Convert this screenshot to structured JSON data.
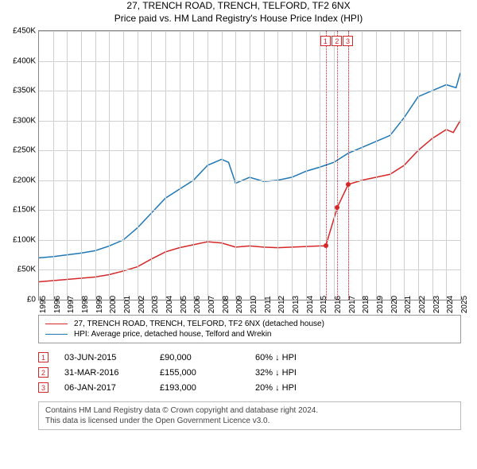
{
  "title": "27, TRENCH ROAD, TRENCH, TELFORD, TF2 6NX",
  "subtitle": "Price paid vs. HM Land Registry's House Price Index (HPI)",
  "chart": {
    "type": "line",
    "background_color": "#ffffff",
    "grid_color": "#d0d0d0",
    "border_color": "#888888",
    "ylim": [
      0,
      450000
    ],
    "ytick_step": 50000,
    "yticks": [
      "£0",
      "£50K",
      "£100K",
      "£150K",
      "£200K",
      "£250K",
      "£300K",
      "£350K",
      "£400K",
      "£450K"
    ],
    "xlim": [
      1995,
      2025
    ],
    "xticks": [
      "1995",
      "1996",
      "1997",
      "1998",
      "1999",
      "2000",
      "2001",
      "2002",
      "2003",
      "2004",
      "2005",
      "2006",
      "2007",
      "2008",
      "2009",
      "2010",
      "2011",
      "2012",
      "2013",
      "2014",
      "2015",
      "2016",
      "2017",
      "2018",
      "2019",
      "2020",
      "2021",
      "2022",
      "2023",
      "2024",
      "2025"
    ],
    "label_fontsize": 10,
    "series": [
      {
        "name": "27, TRENCH ROAD, TRENCH, TELFORD, TF2 6NX (detached house)",
        "color": "#d62728",
        "line_width": 1.5,
        "data": [
          [
            1995,
            30000
          ],
          [
            1996,
            32000
          ],
          [
            1997,
            34000
          ],
          [
            1998,
            36000
          ],
          [
            1999,
            38000
          ],
          [
            2000,
            42000
          ],
          [
            2001,
            48000
          ],
          [
            2002,
            55000
          ],
          [
            2003,
            68000
          ],
          [
            2004,
            80000
          ],
          [
            2005,
            87000
          ],
          [
            2006,
            92000
          ],
          [
            2007,
            97000
          ],
          [
            2008,
            95000
          ],
          [
            2009,
            88000
          ],
          [
            2010,
            90000
          ],
          [
            2011,
            88000
          ],
          [
            2012,
            87000
          ],
          [
            2013,
            88000
          ],
          [
            2014,
            89000
          ],
          [
            2015,
            90000
          ],
          [
            2015.42,
            90000
          ],
          [
            2016.25,
            155000
          ],
          [
            2017.02,
            193000
          ],
          [
            2018,
            200000
          ],
          [
            2019,
            205000
          ],
          [
            2020,
            210000
          ],
          [
            2021,
            225000
          ],
          [
            2022,
            250000
          ],
          [
            2023,
            270000
          ],
          [
            2024,
            285000
          ],
          [
            2024.5,
            280000
          ],
          [
            2025,
            300000
          ]
        ]
      },
      {
        "name": "HPI: Average price, detached house, Telford and Wrekin",
        "color": "#1f77b4",
        "line_width": 1.5,
        "data": [
          [
            1995,
            70000
          ],
          [
            1996,
            72000
          ],
          [
            1997,
            75000
          ],
          [
            1998,
            78000
          ],
          [
            1999,
            82000
          ],
          [
            2000,
            90000
          ],
          [
            2001,
            100000
          ],
          [
            2002,
            120000
          ],
          [
            2003,
            145000
          ],
          [
            2004,
            170000
          ],
          [
            2005,
            185000
          ],
          [
            2006,
            200000
          ],
          [
            2007,
            225000
          ],
          [
            2008,
            235000
          ],
          [
            2008.5,
            230000
          ],
          [
            2009,
            195000
          ],
          [
            2010,
            205000
          ],
          [
            2011,
            198000
          ],
          [
            2012,
            200000
          ],
          [
            2013,
            205000
          ],
          [
            2014,
            215000
          ],
          [
            2015,
            222000
          ],
          [
            2016,
            230000
          ],
          [
            2017,
            245000
          ],
          [
            2018,
            255000
          ],
          [
            2019,
            265000
          ],
          [
            2020,
            275000
          ],
          [
            2021,
            305000
          ],
          [
            2022,
            340000
          ],
          [
            2023,
            350000
          ],
          [
            2024,
            360000
          ],
          [
            2024.7,
            355000
          ],
          [
            2025,
            380000
          ]
        ]
      }
    ],
    "markers": [
      {
        "n": "1",
        "x": 2015.42,
        "y": 90000
      },
      {
        "n": "2",
        "x": 2016.25,
        "y": 155000
      },
      {
        "n": "3",
        "x": 2017.02,
        "y": 193000
      }
    ],
    "marker_color": "#d62728",
    "dot_color": "#d62728"
  },
  "legend": {
    "items": [
      {
        "label": "27, TRENCH ROAD, TRENCH, TELFORD, TF2 6NX (detached house)",
        "color": "#d62728"
      },
      {
        "label": "HPI: Average price, detached house, Telford and Wrekin",
        "color": "#1f77b4"
      }
    ]
  },
  "events": [
    {
      "n": "1",
      "date": "03-JUN-2015",
      "price": "£90,000",
      "pct": "60% ↓ HPI"
    },
    {
      "n": "2",
      "date": "31-MAR-2016",
      "price": "£155,000",
      "pct": "32% ↓ HPI"
    },
    {
      "n": "3",
      "date": "06-JAN-2017",
      "price": "£193,000",
      "pct": "20% ↓ HPI"
    }
  ],
  "footnote_line1": "Contains HM Land Registry data © Crown copyright and database right 2024.",
  "footnote_line2": "This data is licensed under the Open Government Licence v3.0."
}
